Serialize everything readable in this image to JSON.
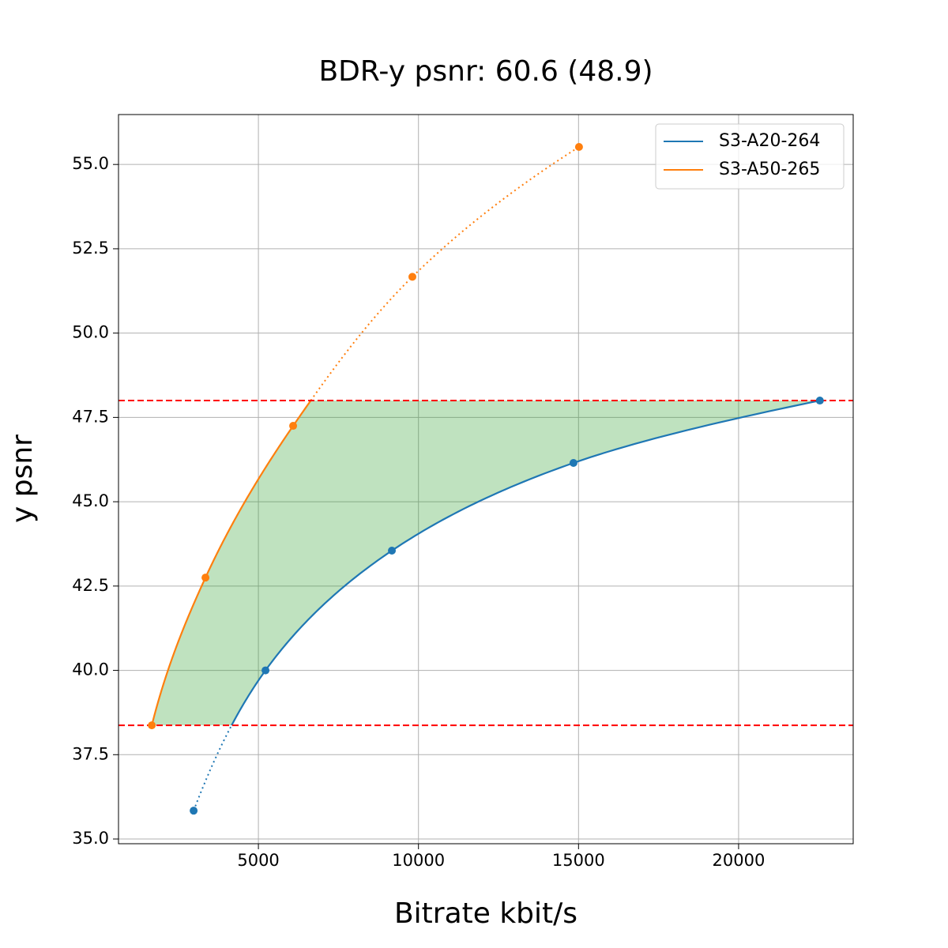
{
  "chart_data": {
    "type": "line",
    "title": "BDR-y psnr: 60.6 (48.9)",
    "x_label": "Bitrate kbit/s",
    "y_label": "y psnr",
    "series": [
      {
        "name": "S3-A20-264",
        "color": "#1f77b4",
        "x": [
          2977,
          5222,
          9169,
          14842,
          22538
        ],
        "values": [
          35.84,
          40.0,
          43.55,
          46.15,
          48.0
        ]
      },
      {
        "name": "S3-A50-265",
        "color": "#ff7f0e",
        "x": [
          1670,
          3347,
          6085,
          9810,
          15015
        ],
        "values": [
          38.37,
          42.75,
          47.25,
          51.67,
          55.52
        ]
      }
    ],
    "reference_lines": {
      "values": [
        38.37,
        48.0
      ],
      "color": "#ff0000"
    },
    "fill_color": "#2ca02c",
    "xlim": [
      630,
      23580
    ],
    "ylim": [
      34.86,
      56.48
    ],
    "xticks": [
      5000,
      10000,
      15000,
      20000
    ],
    "yticks": [
      {
        "value": 35,
        "label": "35.0"
      },
      {
        "value": 37.5,
        "label": "37.5"
      },
      {
        "value": 40,
        "label": "40.0"
      },
      {
        "value": 42.5,
        "label": "42.5"
      },
      {
        "value": 45,
        "label": "45.0"
      },
      {
        "value": 47.5,
        "label": "47.5"
      },
      {
        "value": 50,
        "label": "50.0"
      },
      {
        "value": 52.5,
        "label": "52.5"
      },
      {
        "value": 55,
        "label": "55.0"
      }
    ],
    "grid": true,
    "legend": "upper right"
  }
}
